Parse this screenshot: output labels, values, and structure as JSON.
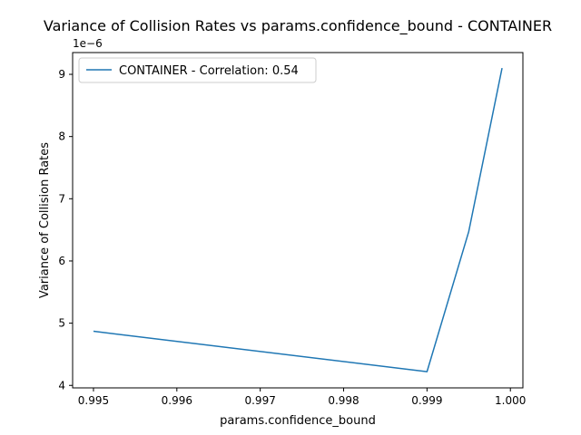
{
  "chart_data": {
    "type": "line",
    "title": "Variance of Collision Rates vs params.confidence_bound - CONTAINER",
    "xlabel": "params.confidence_bound",
    "ylabel": "Variance of Collision Rates",
    "y_offset_label": "1e−6",
    "xlim": [
      0.99475,
      1.00015
    ],
    "ylim": [
      3.96,
      9.35
    ],
    "x_ticks": [
      0.995,
      0.996,
      0.997,
      0.998,
      0.999,
      1.0
    ],
    "x_tick_labels": [
      "0.995",
      "0.996",
      "0.997",
      "0.998",
      "0.999",
      "1.000"
    ],
    "y_ticks": [
      4,
      5,
      6,
      7,
      8,
      9
    ],
    "y_tick_labels": [
      "4",
      "5",
      "6",
      "7",
      "8",
      "9"
    ],
    "grid": false,
    "legend_position": "top-left",
    "series": [
      {
        "name": "CONTAINER - Correlation: 0.54",
        "color": "#1f77b4",
        "x": [
          0.995,
          0.999,
          0.9995,
          0.9999
        ],
        "y": [
          4.87,
          4.22,
          6.47,
          9.1
        ]
      }
    ]
  }
}
